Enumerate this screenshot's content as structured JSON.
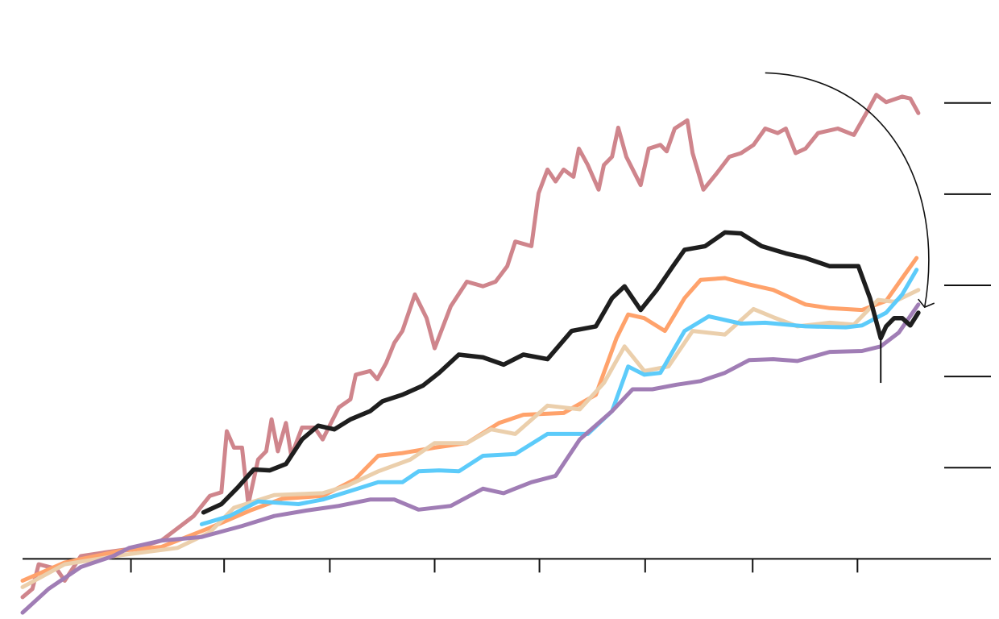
{
  "chart_data": {
    "type": "line",
    "title": "",
    "xlabel": "",
    "ylabel": "",
    "xlim": [
      0,
      108.1
    ],
    "ylim": [
      -0.66,
      6.13
    ],
    "grid": false,
    "legend": "none",
    "x_ticks": [
      12.1,
      22.5,
      34.3,
      46.0,
      57.7,
      69.5,
      81.5,
      93.2
    ],
    "y_ticks": [
      1,
      2,
      3,
      4,
      5
    ],
    "series": [
      {
        "color": "#cf858c",
        "points": [
          [
            0,
            -0.42
          ],
          [
            1.1,
            -0.33
          ],
          [
            1.8,
            -0.06
          ],
          [
            3.8,
            -0.11
          ],
          [
            4.7,
            -0.24
          ],
          [
            6.5,
            0.03
          ],
          [
            9.2,
            0.07
          ],
          [
            12.8,
            0.12
          ],
          [
            15.5,
            0.2
          ],
          [
            19.1,
            0.47
          ],
          [
            20.9,
            0.69
          ],
          [
            22.2,
            0.73
          ],
          [
            22.8,
            1.4
          ],
          [
            23.6,
            1.22
          ],
          [
            24.5,
            1.22
          ],
          [
            25.2,
            0.6
          ],
          [
            26.3,
            1.09
          ],
          [
            27.2,
            1.18
          ],
          [
            27.8,
            1.53
          ],
          [
            28.5,
            1.18
          ],
          [
            29.4,
            1.49
          ],
          [
            30.0,
            1.13
          ],
          [
            31.2,
            1.44
          ],
          [
            32.6,
            1.44
          ],
          [
            33.5,
            1.31
          ],
          [
            35.3,
            1.66
          ],
          [
            36.6,
            1.75
          ],
          [
            37.2,
            2.02
          ],
          [
            38.8,
            2.06
          ],
          [
            39.6,
            1.97
          ],
          [
            40.6,
            2.15
          ],
          [
            41.5,
            2.37
          ],
          [
            42.4,
            2.5
          ],
          [
            43.8,
            2.9
          ],
          [
            45.1,
            2.64
          ],
          [
            46.0,
            2.31
          ],
          [
            47.8,
            2.77
          ],
          [
            49.6,
            3.04
          ],
          [
            51.4,
            2.99
          ],
          [
            52.8,
            3.04
          ],
          [
            54.1,
            3.21
          ],
          [
            55.0,
            3.48
          ],
          [
            56.8,
            3.43
          ],
          [
            57.6,
            4.01
          ],
          [
            58.6,
            4.27
          ],
          [
            59.5,
            4.14
          ],
          [
            60.4,
            4.27
          ],
          [
            61.5,
            4.19
          ],
          [
            62.1,
            4.5
          ],
          [
            63.1,
            4.32
          ],
          [
            64.3,
            4.05
          ],
          [
            64.9,
            4.32
          ],
          [
            65.8,
            4.41
          ],
          [
            66.5,
            4.73
          ],
          [
            67.4,
            4.41
          ],
          [
            69.0,
            4.1
          ],
          [
            69.9,
            4.5
          ],
          [
            71.2,
            4.54
          ],
          [
            71.9,
            4.47
          ],
          [
            72.8,
            4.72
          ],
          [
            74.2,
            4.81
          ],
          [
            74.8,
            4.45
          ],
          [
            76.0,
            4.05
          ],
          [
            77.5,
            4.23
          ],
          [
            78.9,
            4.41
          ],
          [
            80.2,
            4.45
          ],
          [
            81.6,
            4.54
          ],
          [
            82.9,
            4.72
          ],
          [
            84.3,
            4.67
          ],
          [
            85.2,
            4.72
          ],
          [
            86.3,
            4.45
          ],
          [
            87.4,
            4.5
          ],
          [
            88.8,
            4.67
          ],
          [
            91.0,
            4.72
          ],
          [
            92.8,
            4.65
          ],
          [
            94.2,
            4.89
          ],
          [
            95.3,
            5.09
          ],
          [
            96.4,
            5.01
          ],
          [
            98.2,
            5.07
          ],
          [
            99.1,
            5.05
          ],
          [
            100,
            4.89
          ]
        ]
      },
      {
        "color": "#ffa26b",
        "points": [
          [
            0,
            -0.24
          ],
          [
            4.7,
            -0.04
          ],
          [
            11.0,
            0.09
          ],
          [
            15.5,
            0.13
          ],
          [
            20.9,
            0.34
          ],
          [
            25.4,
            0.53
          ],
          [
            29.0,
            0.66
          ],
          [
            33.5,
            0.69
          ],
          [
            37.1,
            0.87
          ],
          [
            39.7,
            1.13
          ],
          [
            42.4,
            1.16
          ],
          [
            46.0,
            1.22
          ],
          [
            49.6,
            1.27
          ],
          [
            53.2,
            1.49
          ],
          [
            55.9,
            1.58
          ],
          [
            60.4,
            1.6
          ],
          [
            64.0,
            1.8
          ],
          [
            66.3,
            2.42
          ],
          [
            67.6,
            2.68
          ],
          [
            69.4,
            2.64
          ],
          [
            71.7,
            2.5
          ],
          [
            73.9,
            2.86
          ],
          [
            75.7,
            3.06
          ],
          [
            78.4,
            3.08
          ],
          [
            81.1,
            3.01
          ],
          [
            83.8,
            2.95
          ],
          [
            87.4,
            2.79
          ],
          [
            90.1,
            2.75
          ],
          [
            93.7,
            2.73
          ],
          [
            96.4,
            2.83
          ],
          [
            98.2,
            3.08
          ],
          [
            99.8,
            3.3
          ]
        ]
      },
      {
        "color": "#ebcfac",
        "points": [
          [
            0,
            -0.31
          ],
          [
            4.7,
            -0.06
          ],
          [
            11.0,
            0.04
          ],
          [
            17.3,
            0.12
          ],
          [
            20.9,
            0.29
          ],
          [
            23.6,
            0.56
          ],
          [
            28.1,
            0.7
          ],
          [
            33.5,
            0.72
          ],
          [
            36.2,
            0.8
          ],
          [
            39.7,
            0.96
          ],
          [
            43.3,
            1.09
          ],
          [
            46.0,
            1.27
          ],
          [
            49.6,
            1.27
          ],
          [
            52.3,
            1.42
          ],
          [
            55.0,
            1.37
          ],
          [
            58.6,
            1.68
          ],
          [
            62.2,
            1.64
          ],
          [
            64.9,
            1.93
          ],
          [
            67.2,
            2.33
          ],
          [
            69.4,
            2.06
          ],
          [
            72.1,
            2.11
          ],
          [
            74.8,
            2.5
          ],
          [
            78.4,
            2.46
          ],
          [
            81.6,
            2.74
          ],
          [
            83.8,
            2.65
          ],
          [
            86.5,
            2.55
          ],
          [
            90.1,
            2.59
          ],
          [
            92.8,
            2.57
          ],
          [
            95.5,
            2.84
          ],
          [
            97.3,
            2.82
          ],
          [
            100,
            2.95
          ]
        ]
      },
      {
        "color": "#5ccbfa",
        "points": [
          [
            20.0,
            0.38
          ],
          [
            23.1,
            0.47
          ],
          [
            26.3,
            0.63
          ],
          [
            30.8,
            0.6
          ],
          [
            33.5,
            0.65
          ],
          [
            37.1,
            0.76
          ],
          [
            39.7,
            0.84
          ],
          [
            42.4,
            0.84
          ],
          [
            44.2,
            0.96
          ],
          [
            46.5,
            0.97
          ],
          [
            48.7,
            0.96
          ],
          [
            51.4,
            1.13
          ],
          [
            55.0,
            1.15
          ],
          [
            58.6,
            1.37
          ],
          [
            63.1,
            1.37
          ],
          [
            65.8,
            1.62
          ],
          [
            67.6,
            2.11
          ],
          [
            69.4,
            2.02
          ],
          [
            71.2,
            2.04
          ],
          [
            73.9,
            2.5
          ],
          [
            76.6,
            2.66
          ],
          [
            80.2,
            2.58
          ],
          [
            82.9,
            2.59
          ],
          [
            87.4,
            2.55
          ],
          [
            91.9,
            2.54
          ],
          [
            93.7,
            2.56
          ],
          [
            96.4,
            2.7
          ],
          [
            98.2,
            2.9
          ],
          [
            99.8,
            3.17
          ]
        ]
      },
      {
        "color": "#a07db5",
        "points": [
          [
            0,
            -0.59
          ],
          [
            2.9,
            -0.33
          ],
          [
            6.5,
            -0.09
          ],
          [
            10.1,
            0.03
          ],
          [
            11.9,
            0.12
          ],
          [
            15.5,
            0.2
          ],
          [
            20.0,
            0.24
          ],
          [
            24.5,
            0.36
          ],
          [
            28.1,
            0.47
          ],
          [
            31.7,
            0.53
          ],
          [
            35.3,
            0.58
          ],
          [
            38.8,
            0.65
          ],
          [
            41.5,
            0.65
          ],
          [
            44.2,
            0.54
          ],
          [
            47.8,
            0.58
          ],
          [
            51.4,
            0.77
          ],
          [
            53.7,
            0.72
          ],
          [
            56.8,
            0.84
          ],
          [
            59.5,
            0.91
          ],
          [
            62.2,
            1.31
          ],
          [
            65.8,
            1.62
          ],
          [
            68.1,
            1.86
          ],
          [
            70.3,
            1.86
          ],
          [
            73.0,
            1.91
          ],
          [
            75.7,
            1.95
          ],
          [
            78.4,
            2.04
          ],
          [
            81.1,
            2.18
          ],
          [
            83.8,
            2.19
          ],
          [
            86.5,
            2.17
          ],
          [
            90.1,
            2.27
          ],
          [
            93.7,
            2.28
          ],
          [
            95.8,
            2.33
          ],
          [
            97.8,
            2.48
          ],
          [
            100,
            2.79
          ]
        ]
      },
      {
        "color": "#1e1e1e",
        "points": [
          [
            20.2,
            0.51
          ],
          [
            22.2,
            0.6
          ],
          [
            24.0,
            0.78
          ],
          [
            25.8,
            0.98
          ],
          [
            27.6,
            0.97
          ],
          [
            29.4,
            1.04
          ],
          [
            31.2,
            1.31
          ],
          [
            33.0,
            1.46
          ],
          [
            34.8,
            1.42
          ],
          [
            36.6,
            1.53
          ],
          [
            38.8,
            1.62
          ],
          [
            40.2,
            1.73
          ],
          [
            42.4,
            1.8
          ],
          [
            44.7,
            1.9
          ],
          [
            46.5,
            2.04
          ],
          [
            48.7,
            2.24
          ],
          [
            51.4,
            2.21
          ],
          [
            53.7,
            2.13
          ],
          [
            55.9,
            2.24
          ],
          [
            58.6,
            2.19
          ],
          [
            61.3,
            2.5
          ],
          [
            64.0,
            2.55
          ],
          [
            65.8,
            2.86
          ],
          [
            67.2,
            2.99
          ],
          [
            69.0,
            2.73
          ],
          [
            70.8,
            2.95
          ],
          [
            72.6,
            3.21
          ],
          [
            73.9,
            3.39
          ],
          [
            76.2,
            3.43
          ],
          [
            78.4,
            3.58
          ],
          [
            80.2,
            3.57
          ],
          [
            82.5,
            3.43
          ],
          [
            85.2,
            3.35
          ],
          [
            87.4,
            3.3
          ],
          [
            90.1,
            3.21
          ],
          [
            93.3,
            3.21
          ],
          [
            94.6,
            2.86
          ],
          [
            95.8,
            2.42
          ],
          [
            96.4,
            2.55
          ],
          [
            97.3,
            2.64
          ],
          [
            98.2,
            2.64
          ],
          [
            99.1,
            2.56
          ],
          [
            100,
            2.7
          ]
        ]
      }
    ],
    "annotations": {
      "vertical_marker": {
        "x": 95.8,
        "y_from": 2.42,
        "y_to": 1.93
      },
      "curved_arrow": {
        "from": [
          82.9,
          5.33
        ],
        "to": [
          100.7,
          2.76
        ]
      }
    }
  }
}
